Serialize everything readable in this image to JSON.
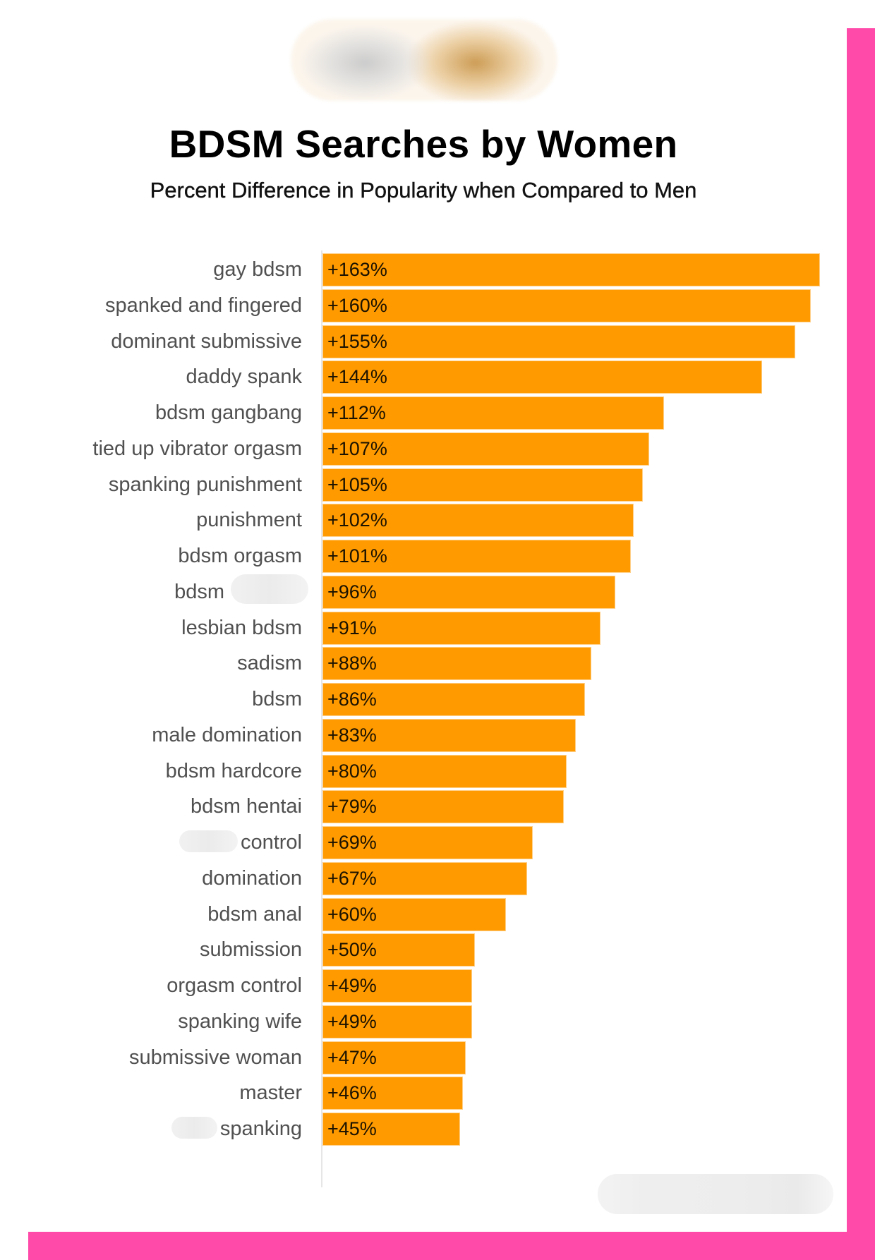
{
  "header": {
    "logo_alt": "blurred-brand-logo",
    "title": "BDSM Searches by Women",
    "subtitle": "Percent Difference in Popularity when Compared to Men"
  },
  "colors": {
    "bar": "#ff9a00",
    "bar_border": "#ffd089",
    "frame": "#ff4aaa",
    "label_text": "#505050",
    "value_text": "#1b1200"
  },
  "chart_data": {
    "type": "bar",
    "orientation": "horizontal",
    "title": "BDSM Searches by Women",
    "subtitle": "Percent Difference in Popularity when Compared to Men",
    "xlabel": "",
    "ylabel": "",
    "grid": false,
    "legend": null,
    "xlim": [
      0,
      163
    ],
    "categories": [
      "gay bdsm",
      "spanked and fingered",
      "dominant submissive",
      "daddy spank",
      "bdsm gangbang",
      "tied up vibrator orgasm",
      "spanking punishment",
      "punishment",
      "bdsm orgasm",
      "bdsm [redacted]",
      "lesbian bdsm",
      "sadism",
      "bdsm",
      "male domination",
      "bdsm hardcore",
      "bdsm hentai",
      "[redacted] control",
      "domination",
      "bdsm anal",
      "submission",
      "orgasm control",
      "spanking wife",
      "submissive woman",
      "master",
      "[redacted] spanking"
    ],
    "values": [
      163,
      160,
      155,
      144,
      112,
      107,
      105,
      102,
      101,
      96,
      91,
      88,
      86,
      83,
      80,
      79,
      69,
      67,
      60,
      50,
      49,
      49,
      47,
      46,
      45
    ],
    "value_labels": [
      "+163%",
      "+160%",
      "+155%",
      "+144%",
      "+112%",
      "+107%",
      "+105%",
      "+102%",
      "+101%",
      "+96%",
      "+91%",
      "+88%",
      "+86%",
      "+83%",
      "+80%",
      "+79%",
      "+69%",
      "+67%",
      "+60%",
      "+50%",
      "+49%",
      "+49%",
      "+47%",
      "+46%",
      "+45%"
    ]
  },
  "rows": [
    {
      "label": "gay bdsm",
      "value": 163,
      "value_label": "+163%"
    },
    {
      "label": "spanked and fingered",
      "value": 160,
      "value_label": "+160%"
    },
    {
      "label": "dominant submissive",
      "value": 155,
      "value_label": "+155%"
    },
    {
      "label": "daddy spank",
      "value": 144,
      "value_label": "+144%"
    },
    {
      "label": "bdsm gangbang",
      "value": 112,
      "value_label": "+112%"
    },
    {
      "label": "tied up vibrator orgasm",
      "value": 107,
      "value_label": "+107%"
    },
    {
      "label": "spanking punishment",
      "value": 105,
      "value_label": "+105%"
    },
    {
      "label": "punishment",
      "value": 102,
      "value_label": "+102%"
    },
    {
      "label": "bdsm orgasm",
      "value": 101,
      "value_label": "+101%"
    },
    {
      "label": "bdsm",
      "value": 96,
      "value_label": "+96%",
      "redacted": "after"
    },
    {
      "label": "lesbian bdsm",
      "value": 91,
      "value_label": "+91%"
    },
    {
      "label": "sadism",
      "value": 88,
      "value_label": "+88%"
    },
    {
      "label": "bdsm",
      "value": 86,
      "value_label": "+86%"
    },
    {
      "label": "male domination",
      "value": 83,
      "value_label": "+83%"
    },
    {
      "label": "bdsm hardcore",
      "value": 80,
      "value_label": "+80%"
    },
    {
      "label": "bdsm hentai",
      "value": 79,
      "value_label": "+79%"
    },
    {
      "label": "control",
      "value": 69,
      "value_label": "+69%",
      "redacted": "before"
    },
    {
      "label": "domination",
      "value": 67,
      "value_label": "+67%"
    },
    {
      "label": "bdsm anal",
      "value": 60,
      "value_label": "+60%"
    },
    {
      "label": "submission",
      "value": 50,
      "value_label": "+50%"
    },
    {
      "label": "orgasm control",
      "value": 49,
      "value_label": "+49%"
    },
    {
      "label": "spanking wife",
      "value": 49,
      "value_label": "+49%"
    },
    {
      "label": "submissive woman",
      "value": 47,
      "value_label": "+47%"
    },
    {
      "label": "master",
      "value": 46,
      "value_label": "+46%"
    },
    {
      "label": "spanking",
      "value": 45,
      "value_label": "+45%",
      "redacted": "before"
    }
  ],
  "footer": {
    "watermark_alt": "blurred-footer-watermark"
  }
}
